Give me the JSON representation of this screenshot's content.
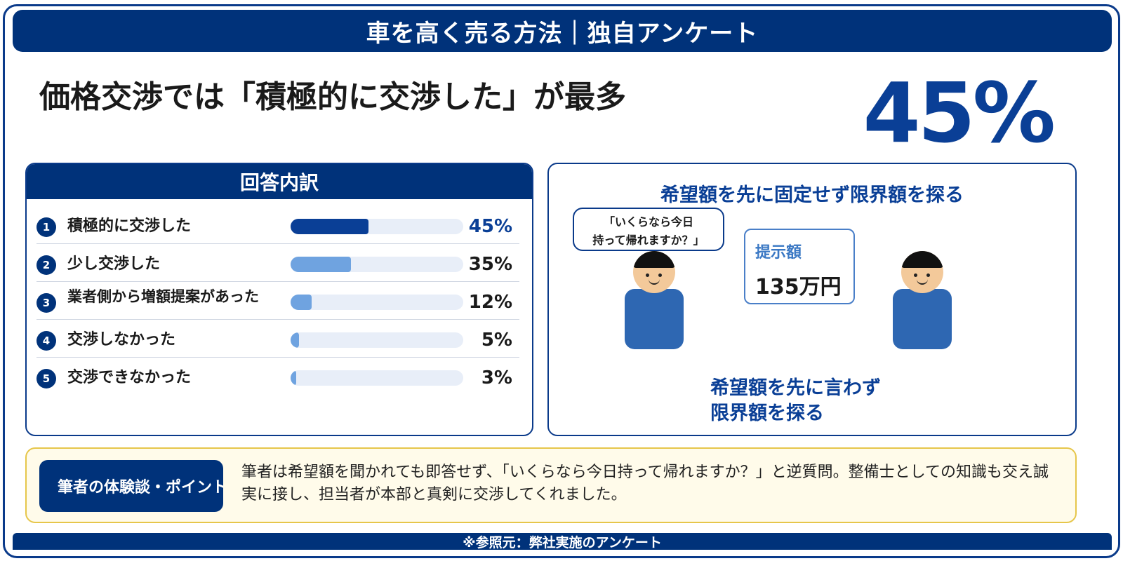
{
  "header": {
    "title": "車を高く売る方法｜独自アンケート"
  },
  "headline": "価格交渉では「積極的に交渉した」が最多",
  "highlight_stat": "45%",
  "breakdown": {
    "title": "回答内訳",
    "items": [
      {
        "num": "1",
        "label": "積極的に交渉した",
        "pct": "45%",
        "value": 0.45,
        "color": "#0a3f96"
      },
      {
        "num": "2",
        "label": "少し交渉した",
        "pct": "35%",
        "value": 0.35,
        "color": "#6fa3e0"
      },
      {
        "num": "3",
        "label": "業者側から増額提案があった",
        "pct": "12%",
        "value": 0.12,
        "color": "#6fa3e0"
      },
      {
        "num": "4",
        "label": "交渉しなかった",
        "pct": "5%",
        "value": 0.05,
        "color": "#6fa3e0"
      },
      {
        "num": "5",
        "label": "交渉できなかった",
        "pct": "3%",
        "value": 0.03,
        "color": "#6fa3e0"
      }
    ]
  },
  "scenario": {
    "title": "希望額を先に固定せず限界額を探る",
    "bubble_line1": "「いくらなら今日",
    "bubble_line2": "持って帰れますか？」",
    "offer_label": "提示額",
    "offer_value": "135万円",
    "caption_line1": "希望額を先に言わず",
    "caption_line2": "限界額を探る"
  },
  "note": {
    "tag": "筆者の体験談・ポイント",
    "text": "筆者は希望額を聞かれても即答せず、「いくらなら今日持って帰れますか？」と逆質問。整備士としての知識も交え誠実に接し、担当者が本部と真剣に交渉してくれました。"
  },
  "source": "※参照元：弊社実施のアンケート",
  "colors": {
    "brand": "#00327a",
    "accent": "#0a3f96",
    "light_bar": "#6fa3e0",
    "note_bg": "#fffbea",
    "note_border": "#e6c64a"
  }
}
